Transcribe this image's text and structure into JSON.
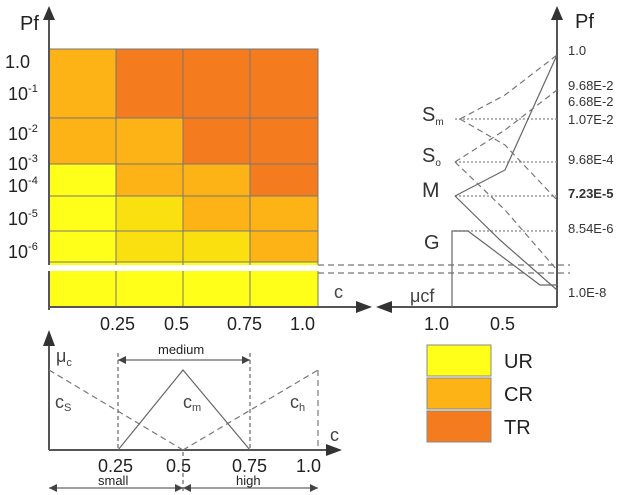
{
  "left_panel": {
    "y_axis_label": "Pf",
    "x_axis_label": "c",
    "y_ticks": [
      "1.0",
      "10-1",
      "10-2",
      "10-3",
      "10-4",
      "10-5",
      "10-6"
    ],
    "x_ticks": [
      "0.25",
      "0.5",
      "0.75",
      "1.0"
    ]
  },
  "right_panel": {
    "y_axis_label": "Pf",
    "x_axis_label": "μcf",
    "x_ticks": [
      "1.0",
      "0.5"
    ],
    "values": [
      "1.0",
      "9.68E-2",
      "6.68E-2",
      "1.07E-2",
      "9.68E-4",
      "7.23E-5",
      "8.54E-6",
      "1.0E-8"
    ],
    "highlight_value": "7.23E-5",
    "highlight_color": "#1f1fb4",
    "levels": [
      "Sm",
      "So",
      "M",
      "G"
    ]
  },
  "membership_panel": {
    "y_axis_label": "μc",
    "x_axis_label": "c",
    "x_ticks": [
      "0.25",
      "0.5",
      "0.75",
      "1.0"
    ],
    "curves": [
      "cs",
      "cm",
      "ch"
    ],
    "labels": {
      "medium": "medium",
      "small": "small",
      "high": "high"
    }
  },
  "legend": [
    {
      "label": "UR",
      "color": "#ffff1a"
    },
    {
      "label": "CR",
      "color": "#fdb316"
    },
    {
      "label": "TR",
      "color": "#f57b1f"
    }
  ],
  "grid_colors": {
    "UR": "#ffff1a",
    "CR": "#fdb316",
    "TR": "#f57b1f",
    "Y2": "#fbe00f",
    "Y3": "#f8c90f"
  }
}
